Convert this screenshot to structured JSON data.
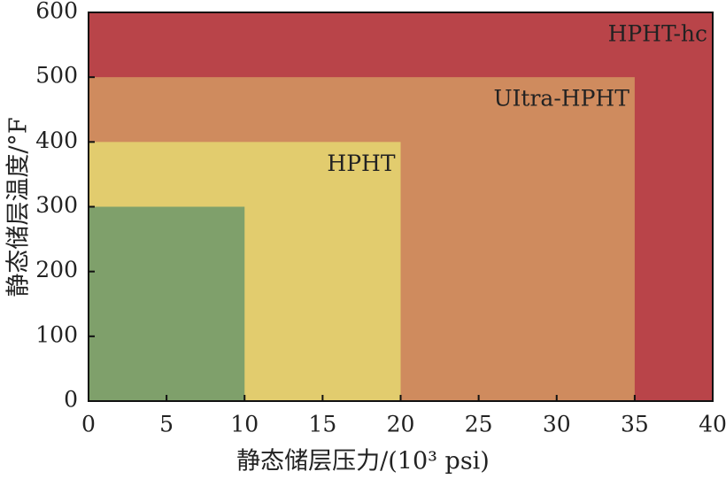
{
  "chart_data": {
    "type": "region",
    "xlabel": "静态储层压力/(10³ psi)",
    "ylabel": "静态储层温度/°F",
    "xlim": [
      0,
      40
    ],
    "xticks": [
      0,
      5,
      10,
      15,
      20,
      25,
      30,
      35,
      40
    ],
    "ylim": [
      0,
      600
    ],
    "yticks": [
      0,
      100,
      200,
      300,
      400,
      500,
      600
    ],
    "regions": [
      {
        "name": "HPHT-hc",
        "x": 40,
        "y": 600,
        "color": "#b94449"
      },
      {
        "name": "UItra-HPHT",
        "x": 35,
        "y": 500,
        "color": "#cf8b5e"
      },
      {
        "name": "HPHT",
        "x": 20,
        "y": 400,
        "color": "#e2cc6e"
      },
      {
        "x": 10,
        "y": 300,
        "color": "#7fa06b"
      }
    ]
  }
}
